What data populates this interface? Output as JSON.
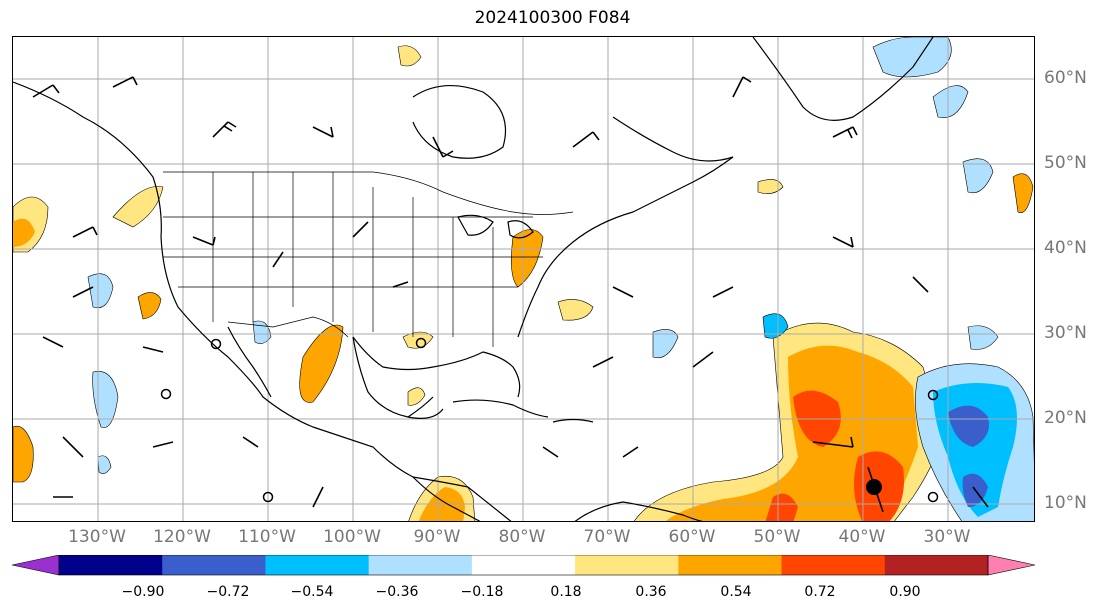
{
  "title": "2024100300 F084",
  "lon_labels": [
    "130°W",
    "120°W",
    "110°W",
    "100°W",
    "90°W",
    "80°W",
    "70°W",
    "60°W",
    "50°W",
    "40°W",
    "30°W"
  ],
  "lat_labels": [
    "60°N",
    "50°N",
    "40°N",
    "30°N",
    "20°N",
    "10°N"
  ],
  "colorbar": {
    "ticks": [
      "−0.90",
      "−0.72",
      "−0.54",
      "−0.36",
      "−0.18",
      "0.18",
      "0.36",
      "0.54",
      "0.72",
      "0.90"
    ],
    "colors": [
      "#9b30d0",
      "#00008b",
      "#3a5fcd",
      "#00bfff",
      "#b0e0ff",
      "#ffffff",
      "#ffe680",
      "#ffa500",
      "#ff4500",
      "#b22222",
      "#ff7fb0"
    ]
  },
  "icons": [
    "wind-barb-icon",
    "tropical-cyclone-center-icon",
    "calm-circle-icon"
  ]
}
